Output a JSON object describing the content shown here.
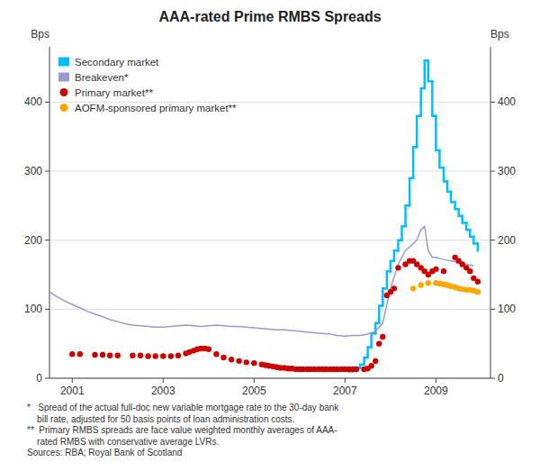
{
  "chart_data": {
    "type": "line",
    "title": "AAA-rated Prime RMBS Spreads",
    "ylabel": "Bps",
    "y2label": "Bps",
    "xlim": [
      2000.5,
      2010.2
    ],
    "xticks": [
      2001,
      2003,
      2005,
      2007,
      2009
    ],
    "ylim": [
      0,
      480
    ],
    "yticks": [
      0,
      100,
      200,
      300,
      400
    ],
    "y2lim": [
      0,
      480
    ],
    "y2ticks": [
      0,
      100,
      200,
      300,
      400
    ],
    "grid": true,
    "legend": "upper left",
    "series": [
      {
        "name": "Secondary market",
        "type": "step",
        "color": "#00BFFF",
        "x": [
          2007.08,
          2007.17,
          2007.25,
          2007.33,
          2007.42,
          2007.5,
          2007.58,
          2007.67,
          2007.75,
          2007.83,
          2007.92,
          2008.0,
          2008.08,
          2008.17,
          2008.25,
          2008.33,
          2008.42,
          2008.5,
          2008.58,
          2008.67,
          2008.75,
          2008.83,
          2008.92,
          2009.0,
          2009.08,
          2009.17,
          2009.25,
          2009.33,
          2009.42,
          2009.5,
          2009.58,
          2009.67,
          2009.75,
          2009.83,
          2009.92
        ],
        "values": [
          10,
          12,
          15,
          20,
          30,
          45,
          65,
          80,
          105,
          130,
          155,
          170,
          185,
          200,
          220,
          250,
          290,
          335,
          380,
          420,
          460,
          430,
          380,
          330,
          305,
          285,
          270,
          255,
          245,
          235,
          225,
          215,
          205,
          195,
          185
        ]
      },
      {
        "name": "Breakeven*",
        "type": "line",
        "color": "#9999CC",
        "x": [
          2000.5,
          2000.67,
          2000.83,
          2001.0,
          2001.17,
          2001.33,
          2001.5,
          2001.67,
          2001.83,
          2002.0,
          2002.17,
          2002.33,
          2002.5,
          2002.67,
          2002.83,
          2003.0,
          2003.17,
          2003.33,
          2003.5,
          2003.67,
          2003.83,
          2004.0,
          2004.17,
          2004.33,
          2004.5,
          2004.67,
          2004.83,
          2005.0,
          2005.17,
          2005.33,
          2005.5,
          2005.67,
          2005.83,
          2006.0,
          2006.17,
          2006.33,
          2006.5,
          2006.67,
          2006.83,
          2007.0,
          2007.17,
          2007.33,
          2007.5,
          2007.67,
          2007.83,
          2008.0,
          2008.17,
          2008.33,
          2008.5,
          2008.58,
          2008.67,
          2008.75,
          2008.83,
          2008.92,
          2009.0,
          2009.17,
          2009.33,
          2009.5,
          2009.67,
          2009.83
        ],
        "values": [
          125,
          118,
          112,
          107,
          102,
          97,
          93,
          89,
          85,
          82,
          79,
          77,
          76,
          75,
          74,
          74,
          75,
          76,
          77,
          76,
          75,
          76,
          77,
          76,
          75,
          75,
          74,
          73,
          72,
          71,
          70,
          70,
          69,
          68,
          67,
          66,
          65,
          64,
          62,
          61,
          62,
          62,
          64,
          68,
          80,
          130,
          165,
          185,
          195,
          200,
          215,
          220,
          185,
          175,
          175,
          172,
          170,
          168,
          165,
          163
        ]
      },
      {
        "name": "Primary market**",
        "type": "scatter",
        "color": "#CC0000",
        "x": [
          2001.0,
          2001.17,
          2001.5,
          2001.67,
          2001.83,
          2002.0,
          2002.33,
          2002.5,
          2002.67,
          2002.83,
          2003.0,
          2003.17,
          2003.33,
          2003.5,
          2003.58,
          2003.67,
          2003.75,
          2003.83,
          2003.92,
          2004.0,
          2004.17,
          2004.33,
          2004.5,
          2004.67,
          2004.83,
          2005.0,
          2005.17,
          2005.25,
          2005.33,
          2005.42,
          2005.5,
          2005.58,
          2005.67,
          2005.75,
          2005.83,
          2005.92,
          2006.0,
          2006.08,
          2006.17,
          2006.25,
          2006.33,
          2006.42,
          2006.5,
          2006.58,
          2006.67,
          2006.75,
          2006.83,
          2006.92,
          2007.0,
          2007.08,
          2007.17,
          2007.25,
          2007.42,
          2007.5,
          2007.58,
          2007.67,
          2007.75,
          2007.83,
          2007.92,
          2008.0,
          2008.08,
          2008.17,
          2008.33,
          2008.42,
          2008.5,
          2008.58,
          2008.67,
          2008.75,
          2008.83,
          2008.92,
          2009.0,
          2009.17,
          2009.42,
          2009.5,
          2009.58,
          2009.67,
          2009.75,
          2009.83,
          2009.92
        ],
        "values": [
          35,
          35,
          34,
          34,
          33,
          33,
          33,
          33,
          32,
          32,
          32,
          32,
          33,
          36,
          38,
          40,
          42,
          43,
          43,
          42,
          35,
          30,
          27,
          25,
          23,
          22,
          20,
          19,
          18,
          17,
          16,
          15,
          15,
          14,
          14,
          13,
          13,
          13,
          13,
          13,
          13,
          13,
          13,
          13,
          13,
          13,
          13,
          13,
          13,
          13,
          13,
          13,
          13,
          14,
          18,
          25,
          50,
          60,
          120,
          125,
          130,
          160,
          165,
          170,
          170,
          165,
          160,
          155,
          150,
          155,
          158,
          155,
          175,
          170,
          165,
          160,
          155,
          145,
          140
        ]
      },
      {
        "name": "AOFM-sponsored primary market**",
        "type": "scatter",
        "color": "#FFA500",
        "x": [
          2008.5,
          2008.67,
          2008.83,
          2009.0,
          2009.08,
          2009.17,
          2009.25,
          2009.33,
          2009.42,
          2009.5,
          2009.58,
          2009.67,
          2009.75,
          2009.83,
          2009.92
        ],
        "values": [
          130,
          135,
          138,
          138,
          137,
          136,
          135,
          133,
          132,
          130,
          129,
          128,
          128,
          127,
          125
        ]
      }
    ],
    "footnote": "*   Spread of the actual full-doc new variable mortgage rate to the 30-day bank\n    bill rate, adjusted for 50 basis points of loan administration costs.\n**  Primary RMBS spreads are face value weighted monthly averages of AAA-\n    rated RMBS with conservative average LVRs.\nSources: RBA; Royal Bank of Scotland"
  }
}
